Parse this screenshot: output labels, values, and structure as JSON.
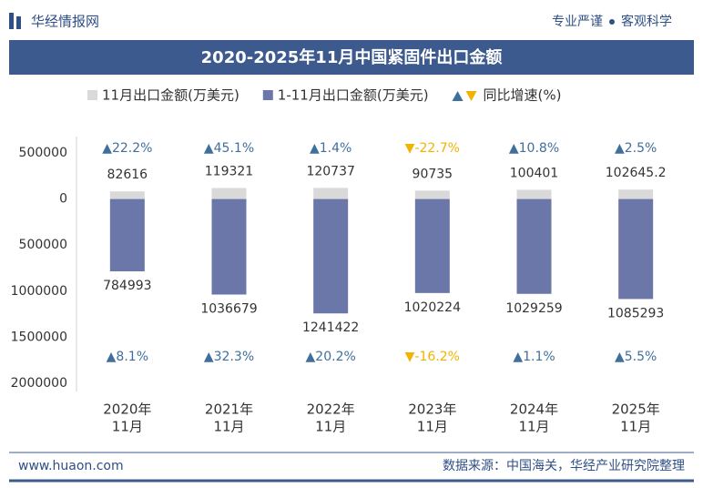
{
  "header": {
    "brand": "华经情报网",
    "slogan_left": "专业严谨",
    "slogan_right": "客观科学"
  },
  "chart_data": {
    "type": "bar",
    "title": "2020-2025年11月中国紧固件出口金额",
    "categories": [
      [
        "2020年",
        "11月"
      ],
      [
        "2021年",
        "11月"
      ],
      [
        "2022年",
        "11月"
      ],
      [
        "2023年",
        "11月"
      ],
      [
        "2024年",
        "11月"
      ],
      [
        "2025年",
        "11月"
      ]
    ],
    "series": [
      {
        "name": "11月出口金额(万美元)",
        "color": "#d9d9d9",
        "direction": "up",
        "values": [
          82616,
          119321,
          120737,
          90735,
          100401,
          102645.2
        ]
      },
      {
        "name": "1-11月出口金额(万美元)",
        "color": "#6b77a8",
        "direction": "down",
        "values": [
          784993,
          1036679,
          1241422,
          1020224,
          1029259,
          1085293
        ]
      }
    ],
    "rates": {
      "name": "同比增速(%)",
      "up_color": "#3f6f9c",
      "down_color": "#f0b400",
      "series": [
        {
          "values": [
            22.2,
            45.1,
            1.4,
            -22.7,
            10.8,
            2.5
          ],
          "value_labels": [
            "▲22.2%",
            "▲45.1%",
            "▲1.4%",
            "▼-22.7%",
            "▲10.8%",
            "▲2.5%"
          ]
        },
        {
          "values": [
            8.1,
            32.3,
            20.2,
            -16.2,
            1.1,
            5.5
          ],
          "value_labels": [
            "▲8.1%",
            "▲32.3%",
            "▲20.2%",
            "▼-16.2%",
            "▲1.1%",
            "▲5.5%"
          ]
        }
      ]
    },
    "ylim": [
      -2000000,
      500000
    ],
    "yticks": [
      {
        "value": 500000,
        "label": "500000"
      },
      0,
      {
        "value": -500000,
        "label": "500000"
      },
      {
        "value": -1000000,
        "label": "1000000"
      },
      {
        "value": -1500000,
        "label": "1500000"
      },
      {
        "value": -2000000,
        "label": "2000000"
      }
    ],
    "grid": false
  },
  "footer": {
    "website": "www.huaon.com",
    "source": "数据来源：中国海关，华经产业研究院整理"
  }
}
